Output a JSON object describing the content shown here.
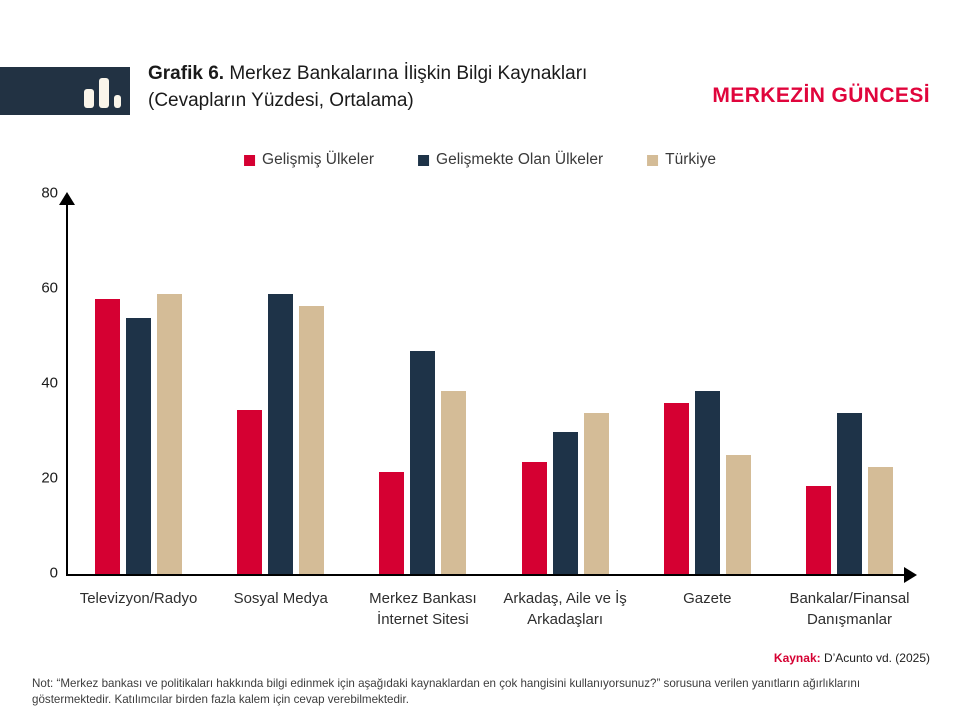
{
  "header": {
    "title_prefix": "Grafik 6.",
    "title_rest": " Merkez Bankalarına İlişkin Bilgi Kaynakları",
    "title_line2": "(Cevapların Yüzdesi, Ortalama)",
    "brand": "MERKEZİN GÜNCESİ"
  },
  "colors": {
    "developed_red": "#d50032",
    "developing_navy": "#1e3348",
    "turkiye_tan": "#d4bc97",
    "brand_red": "#e0053c",
    "logo_navy": "#223243"
  },
  "chart_data": {
    "type": "bar",
    "title": "Grafik 6. Merkez Bankalarına İlişkin Bilgi Kaynakları (Cevapların Yüzdesi, Ortalama)",
    "categories": [
      "Televizyon/Radyo",
      "Sosyal Medya",
      "Merkez Bankası\nİnternet Sitesi",
      "Arkadaş, Aile ve İş\nArkadaşları",
      "Gazete",
      "Bankalar/Finansal\nDanışmanlar"
    ],
    "series": [
      {
        "name": "Gelişmiş Ülkeler",
        "color": "#d50032",
        "values": [
          58,
          34.5,
          21.5,
          23.5,
          36,
          18.5
        ]
      },
      {
        "name": "Gelişmekte Olan Ülkeler",
        "color": "#1e3348",
        "values": [
          54,
          59,
          47,
          30,
          38.5,
          34
        ]
      },
      {
        "name": "Türkiye",
        "color": "#d4bc97",
        "values": [
          59,
          56.5,
          38.5,
          34,
          25,
          22.5
        ]
      }
    ],
    "ylim": [
      0,
      80
    ],
    "yticks": [
      0,
      20,
      40,
      60,
      80
    ],
    "grid": false,
    "legend_position": "top"
  },
  "footer": {
    "source_label": "Kaynak:",
    "source_text": " D’Acunto vd. (2025)",
    "note": "Not: “Merkez bankası ve politikaları hakkında bilgi edinmek için aşağıdaki kaynaklardan en çok hangisini kullanıyorsunuz?” sorusuna verilen yanıtların ağırlıklarını göstermektedir. Katılımcılar birden fazla kalem için cevap verebilmektedir."
  }
}
